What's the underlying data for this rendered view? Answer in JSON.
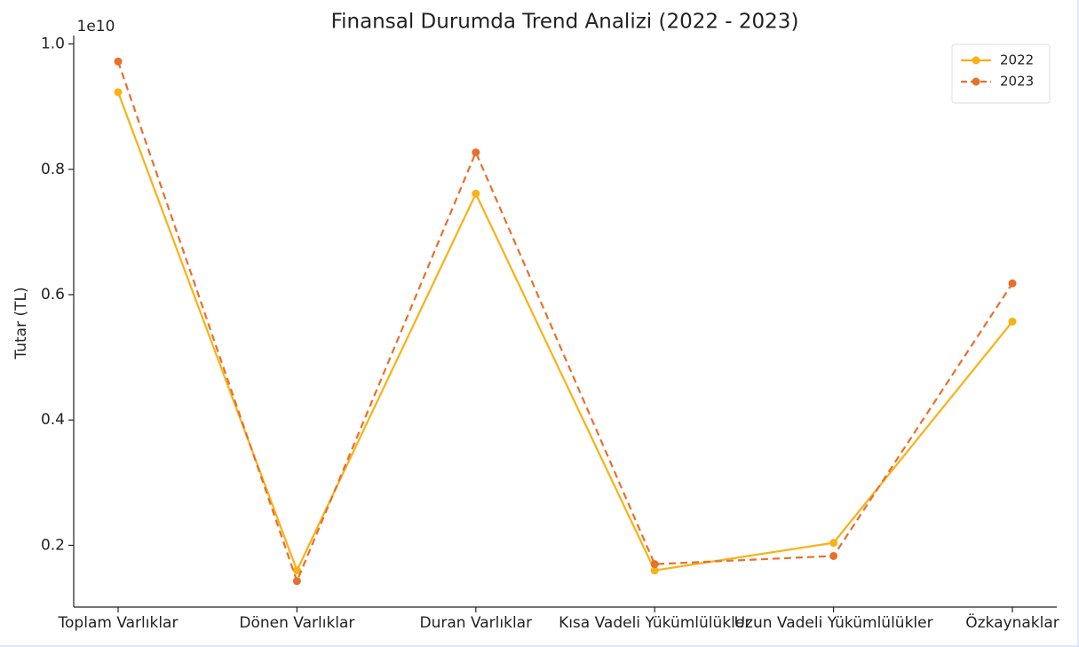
{
  "chart_data": {
    "type": "line",
    "title": "Finansal Durumda Trend Analizi (2022 - 2023)",
    "y_label": "Tutar (TL)",
    "y_offset_label": "1e10",
    "categories": [
      "Toplam Varlıklar",
      "Dönen Varlıklar",
      "Duran Varlıklar",
      "Kısa Vadeli Yükümlülükler",
      "Uzun Vadeli Yükümlülükler",
      "Özkaynaklar"
    ],
    "series": [
      {
        "name": "2022",
        "color": "#f9b115",
        "dash": "solid",
        "values": [
          0.923,
          0.16,
          0.761,
          0.16,
          0.204,
          0.557
        ]
      },
      {
        "name": "2023",
        "color": "#e8702a",
        "dash": "dashed",
        "values": [
          0.972,
          0.143,
          0.827,
          0.17,
          0.183,
          0.618
        ]
      }
    ],
    "ylim": [
      0.1015,
      1.0135
    ],
    "yticks": [
      0.2,
      0.4,
      0.6,
      0.8,
      {
        "value": 1,
        "label": "1.0"
      }
    ],
    "legend": "upper right",
    "grid": false
  }
}
